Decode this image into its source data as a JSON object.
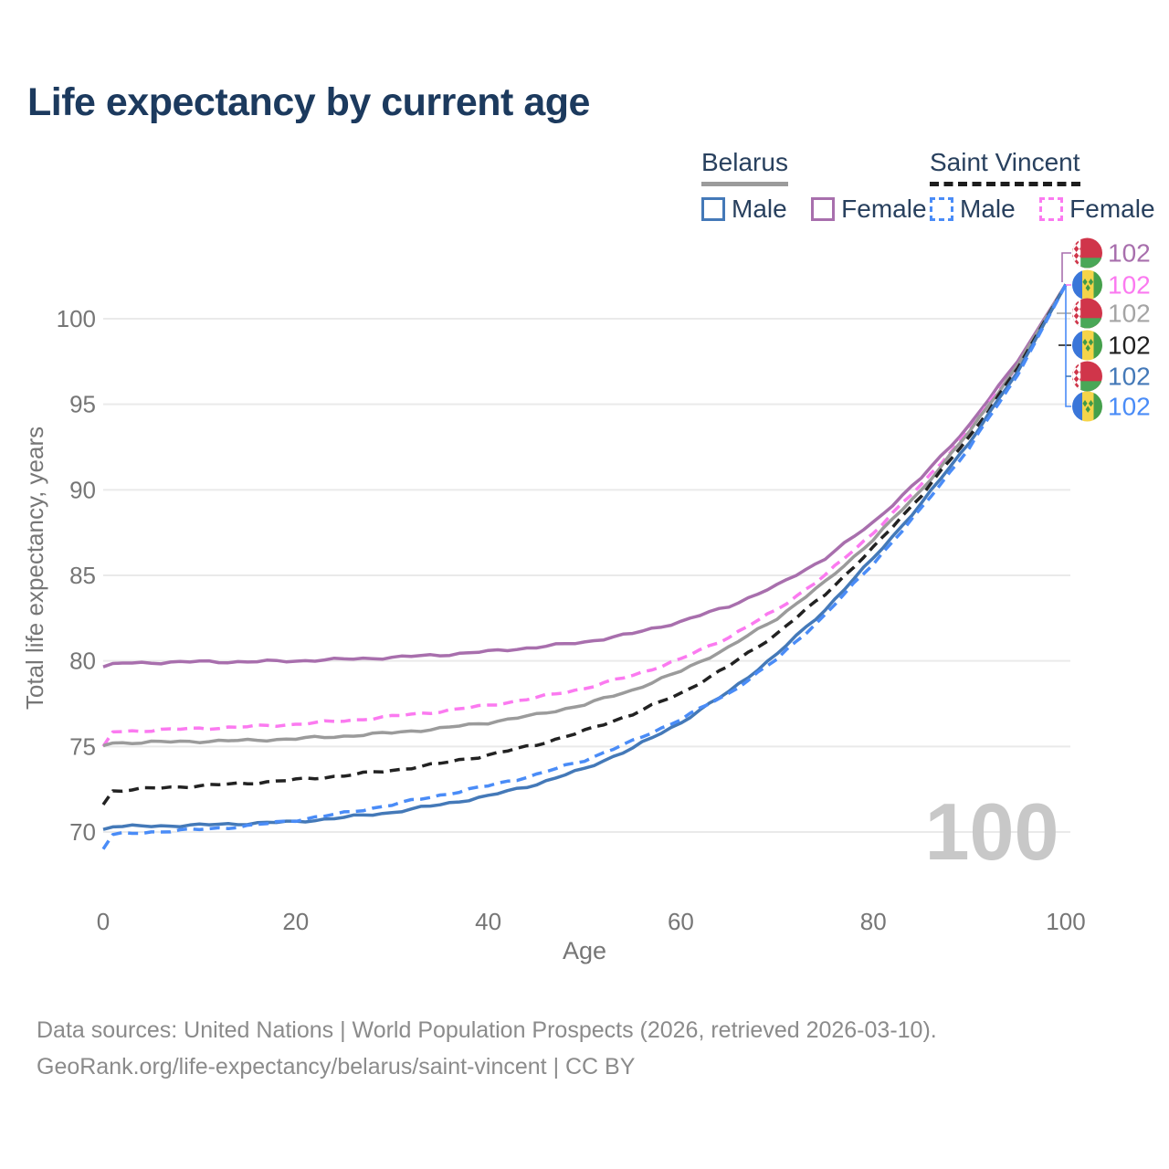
{
  "title": "Life expectancy by current age",
  "legend": {
    "belarus": {
      "title": "Belarus",
      "male": "Male",
      "female": "Female"
    },
    "saint_vincent": {
      "title": "Saint Vincent",
      "male": "Male",
      "female": "Female"
    }
  },
  "watermark_age_counter": "100",
  "axes": {
    "x": {
      "title": "Age",
      "ticks": [
        0,
        20,
        40,
        60,
        80,
        100
      ]
    },
    "y": {
      "title": "Total life expectancy, years",
      "ticks": [
        70,
        75,
        80,
        85,
        90,
        95,
        100
      ]
    }
  },
  "chart_data": {
    "type": "line",
    "title": "Life expectancy by current age",
    "xlabel": "Age",
    "ylabel": "Total life expectancy, years",
    "xlim": [
      0,
      100
    ],
    "ylim": [
      68.5,
      102.5
    ],
    "grid": "horizontal-only",
    "legend_position": "top-right",
    "x": [
      0,
      1,
      5,
      10,
      15,
      20,
      25,
      30,
      35,
      40,
      45,
      50,
      55,
      60,
      65,
      70,
      75,
      80,
      85,
      90,
      95,
      100
    ],
    "series": [
      {
        "name": "Belarus Female",
        "style": "solid",
        "color": "#a86fad",
        "values": [
          79.65,
          79.85,
          79.9,
          79.95,
          79.95,
          80.0,
          80.1,
          80.2,
          80.35,
          80.55,
          80.8,
          81.1,
          81.6,
          82.3,
          83.2,
          84.4,
          86.0,
          88.1,
          90.7,
          93.8,
          97.5,
          102
        ]
      },
      {
        "name": "Saint Vincent Female",
        "style": "dashed",
        "color": "#fb7af0",
        "values": [
          75.0,
          75.85,
          75.95,
          76.05,
          76.15,
          76.3,
          76.5,
          76.75,
          77.05,
          77.4,
          77.85,
          78.4,
          79.15,
          80.1,
          81.4,
          83.0,
          85.0,
          87.5,
          90.3,
          93.5,
          97.3,
          102
        ]
      },
      {
        "name": "Belarus (both sexes)",
        "style": "solid",
        "color": "#9b9b9b",
        "values": [
          75.05,
          75.2,
          75.25,
          75.3,
          75.35,
          75.45,
          75.6,
          75.8,
          76.05,
          76.4,
          76.85,
          77.45,
          78.3,
          79.4,
          80.8,
          82.5,
          84.6,
          87.1,
          90.0,
          93.4,
          97.3,
          102
        ]
      },
      {
        "name": "Saint Vincent (both sexes)",
        "style": "dashed",
        "color": "#222222",
        "values": [
          71.6,
          72.4,
          72.55,
          72.7,
          72.85,
          73.05,
          73.3,
          73.6,
          74.0,
          74.5,
          75.1,
          75.9,
          76.9,
          78.1,
          79.7,
          81.6,
          83.9,
          86.6,
          89.7,
          93.1,
          97.1,
          102
        ]
      },
      {
        "name": "Belarus Male",
        "style": "solid",
        "color": "#4479b8",
        "values": [
          70.15,
          70.3,
          70.35,
          70.4,
          70.5,
          70.6,
          70.85,
          71.15,
          71.6,
          72.1,
          72.8,
          73.7,
          74.9,
          76.4,
          78.2,
          80.4,
          83.0,
          86.0,
          89.2,
          92.8,
          96.9,
          102
        ]
      },
      {
        "name": "Saint Vincent Male",
        "style": "dashed",
        "color": "#4a8cf7",
        "values": [
          69.0,
          69.85,
          70.0,
          70.15,
          70.35,
          70.7,
          71.1,
          71.6,
          72.15,
          72.7,
          73.35,
          74.2,
          75.3,
          76.6,
          78.1,
          80.1,
          82.7,
          85.7,
          88.9,
          92.5,
          96.7,
          102
        ]
      }
    ]
  },
  "end_labels": [
    {
      "flag": "belarus",
      "value": "102",
      "color": "#a86fad"
    },
    {
      "flag": "saint-vincent",
      "value": "102",
      "color": "#fb7af0"
    },
    {
      "flag": "belarus",
      "value": "102",
      "color": "#a5a5a5"
    },
    {
      "flag": "saint-vincent",
      "value": "102",
      "color": "#1f1f1f"
    },
    {
      "flag": "belarus",
      "value": "102",
      "color": "#4479b8"
    },
    {
      "flag": "saint-vincent",
      "value": "102",
      "color": "#4a8cf7"
    }
  ],
  "footer": {
    "line1": "Data sources: United Nations | World Population Prospects (2026, retrieved 2026-03-10).",
    "line2": "GeoRank.org/life-expectancy/belarus/saint-vincent | CC BY"
  },
  "colors": {
    "title": "#1c3a5e",
    "legend_text": "#28405e",
    "grid": "#eaeaea",
    "axis_text": "#767676",
    "watermark": "#c8c8c8",
    "footer_text": "#8b8b8b",
    "belarus_male": "#4479b8",
    "belarus_female": "#a86fad",
    "belarus_total": "#9b9b9b",
    "sv_male": "#4a8cf7",
    "sv_female": "#fb7af0",
    "sv_total": "#222222"
  }
}
